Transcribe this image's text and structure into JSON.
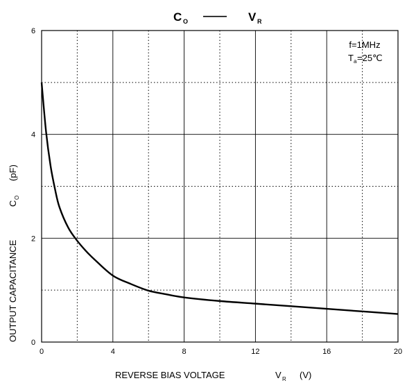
{
  "chart_data": {
    "type": "line",
    "title": {
      "main": "C",
      "main_sub": "O",
      "dash": "——",
      "second": "V",
      "second_sub": "R"
    },
    "conditions": {
      "freq": "f=1MHz",
      "temp_prefix": "T",
      "temp_sub": "a",
      "temp_value": "=25℃"
    },
    "xlabel": {
      "text": "REVERSE BIAS VOLTAGE",
      "symbol": "V",
      "symbol_sub": "R",
      "unit": "(V)"
    },
    "ylabel": {
      "text": "OUTPUT CAPACITANCE",
      "symbol": "C",
      "symbol_sub": "O",
      "unit": "(pF)"
    },
    "xlim": [
      0,
      20
    ],
    "ylim": [
      0,
      6
    ],
    "x_ticks": [
      0,
      4,
      8,
      12,
      16,
      20
    ],
    "y_ticks": [
      0,
      2,
      4,
      6
    ],
    "x_tick_labels": [
      "0",
      "4",
      "8",
      "12",
      "16",
      "20"
    ],
    "y_tick_labels": [
      "0",
      "2",
      "4",
      "6"
    ],
    "grid": {
      "major": true,
      "minor_dotted": true
    },
    "series": [
      {
        "x": [
          0,
          0.25,
          0.5,
          0.75,
          1,
          1.5,
          2,
          2.5,
          3,
          4,
          5,
          6,
          7,
          8,
          10,
          12,
          14,
          16,
          18,
          20
        ],
        "y": [
          5.0,
          4.05,
          3.4,
          2.95,
          2.6,
          2.2,
          1.95,
          1.75,
          1.58,
          1.28,
          1.12,
          0.99,
          0.92,
          0.86,
          0.79,
          0.74,
          0.69,
          0.64,
          0.59,
          0.54
        ]
      }
    ]
  }
}
